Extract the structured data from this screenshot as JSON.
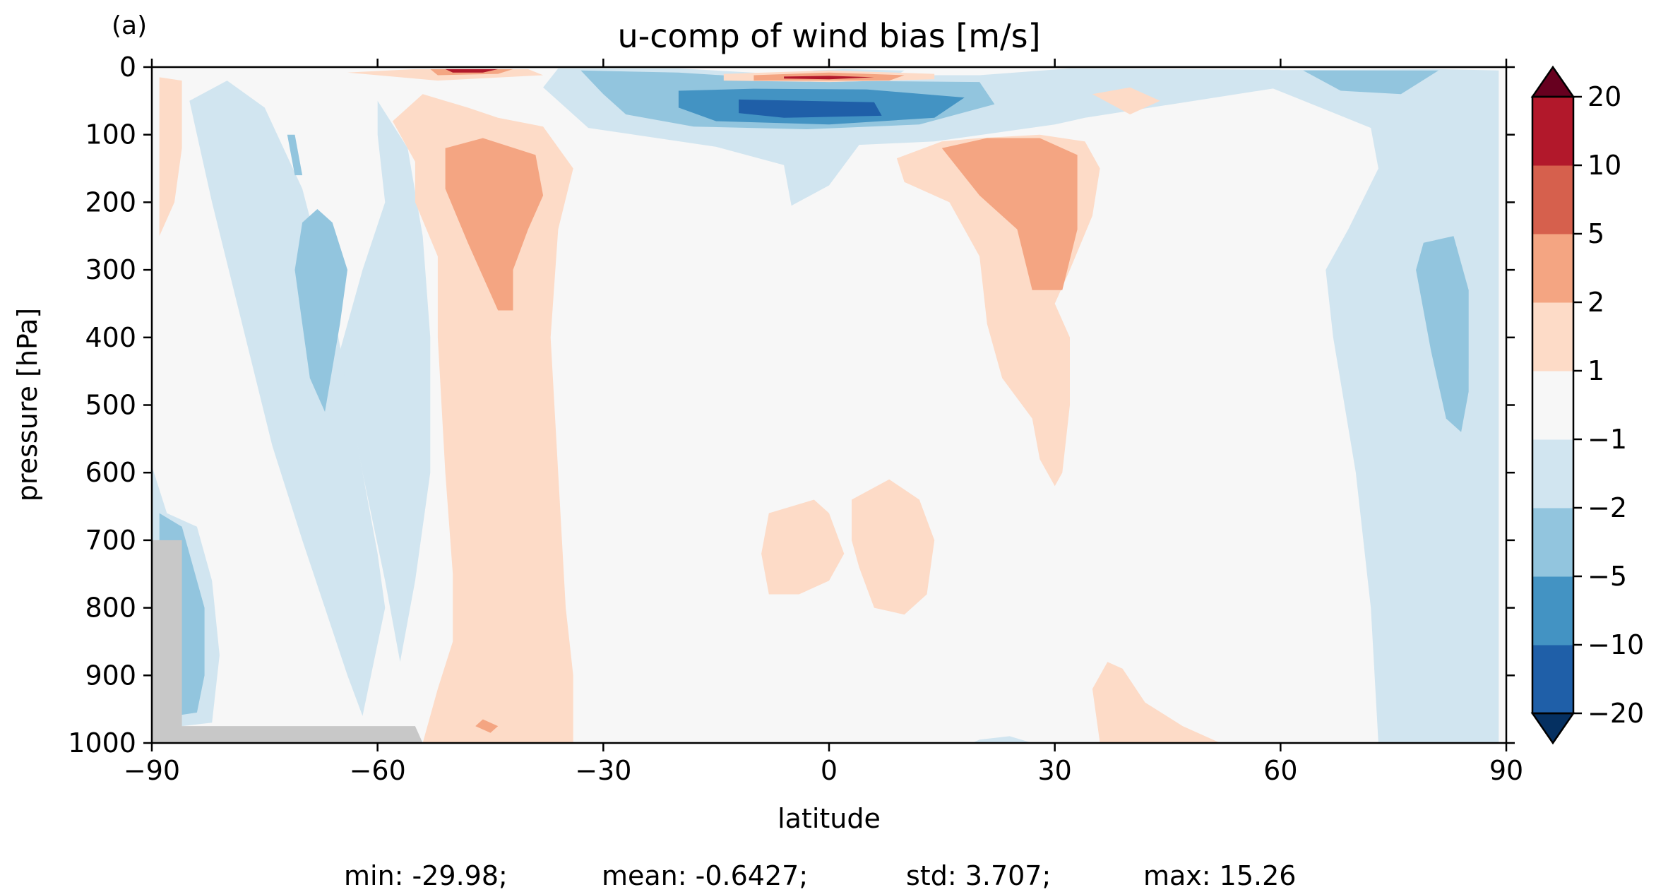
{
  "chart_data": {
    "type": "contourf",
    "panel_label": "(a)",
    "title": "u-comp of wind bias [m/s]",
    "xlabel": "latitude",
    "ylabel": "pressure [hPa]",
    "xlim": [
      -90,
      90
    ],
    "ylim": [
      1000,
      0
    ],
    "xticks": [
      -90,
      -60,
      -30,
      0,
      30,
      60,
      90
    ],
    "xtick_labels": [
      "−90",
      "−60",
      "−30",
      "0",
      "30",
      "60",
      "90"
    ],
    "yticks": [
      0,
      100,
      200,
      300,
      400,
      500,
      600,
      700,
      800,
      900,
      1000
    ],
    "ytick_labels": [
      "0",
      "100",
      "200",
      "300",
      "400",
      "500",
      "600",
      "700",
      "800",
      "900",
      "1000"
    ],
    "colorbar": {
      "levels": [
        -20,
        -10,
        -5,
        -2,
        -1,
        1,
        2,
        5,
        10,
        20
      ],
      "tick_labels": [
        "−20",
        "−10",
        "−5",
        "−2",
        "−1",
        "1",
        "2",
        "5",
        "10",
        "20"
      ],
      "colors": [
        "#1f5fa8",
        "#4393c3",
        "#92c5de",
        "#d1e5f0",
        "#f7f7f7",
        "#fddbc7",
        "#f4a582",
        "#d6604d",
        "#b2182b"
      ],
      "under_color": "#053061",
      "over_color": "#67001f",
      "extend": "both"
    },
    "background_color": "#f7f7f7",
    "missing_color": "#c8c8c8",
    "regions": [
      {
        "level": -2,
        "points": [
          [
            -85,
            50
          ],
          [
            -80,
            20
          ],
          [
            -75,
            60
          ],
          [
            -70,
            180
          ],
          [
            -66,
            350
          ],
          [
            -62,
            600
          ],
          [
            -60,
            720
          ],
          [
            -59,
            800
          ],
          [
            -62,
            960
          ],
          [
            -64,
            900
          ],
          [
            -67,
            800
          ],
          [
            -70,
            700
          ],
          [
            -74,
            560
          ],
          [
            -78,
            380
          ],
          [
            -82,
            200
          ],
          [
            -84,
            100
          ]
        ]
      },
      {
        "level": -2,
        "points": [
          [
            -60,
            50
          ],
          [
            -56,
            120
          ],
          [
            -54,
            250
          ],
          [
            -53,
            400
          ],
          [
            -53,
            600
          ],
          [
            -55,
            760
          ],
          [
            -57,
            880
          ],
          [
            -59,
            760
          ],
          [
            -62,
            600
          ],
          [
            -65,
            420
          ],
          [
            -62,
            300
          ],
          [
            -59,
            200
          ],
          [
            -60,
            100
          ]
        ]
      },
      {
        "level": -5,
        "points": [
          [
            -70,
            230
          ],
          [
            -68,
            210
          ],
          [
            -66,
            230
          ],
          [
            -64,
            300
          ],
          [
            -65,
            380
          ],
          [
            -67,
            510
          ],
          [
            -69,
            460
          ],
          [
            -70,
            380
          ],
          [
            -71,
            300
          ]
        ]
      },
      {
        "level": -5,
        "points": [
          [
            -72,
            100
          ],
          [
            -71,
            100
          ],
          [
            -70,
            160
          ],
          [
            -71,
            160
          ]
        ]
      },
      {
        "level": -2,
        "points": [
          [
            -90,
            590
          ],
          [
            -88,
            660
          ],
          [
            -84,
            680
          ],
          [
            -82,
            760
          ],
          [
            -81,
            870
          ],
          [
            -82,
            970
          ],
          [
            -86,
            975
          ],
          [
            -88,
            700
          ],
          [
            -90,
            700
          ]
        ]
      },
      {
        "level": -5,
        "points": [
          [
            -89,
            660
          ],
          [
            -86,
            680
          ],
          [
            -85,
            720
          ],
          [
            -83,
            800
          ],
          [
            -83,
            900
          ],
          [
            -84,
            955
          ],
          [
            -87,
            960
          ],
          [
            -88,
            800
          ],
          [
            -89,
            720
          ]
        ]
      },
      {
        "level": -2,
        "points": [
          [
            -36,
            2
          ],
          [
            -20,
            2
          ],
          [
            -4,
            12
          ],
          [
            20,
            12
          ],
          [
            32,
            2
          ],
          [
            60,
            4
          ],
          [
            60,
            30
          ],
          [
            34,
            75
          ],
          [
            30,
            85
          ],
          [
            14,
            110
          ],
          [
            4,
            115
          ],
          [
            0,
            175
          ],
          [
            -5,
            205
          ],
          [
            -6,
            145
          ],
          [
            -15,
            118
          ],
          [
            -32,
            90
          ],
          [
            -38,
            30
          ]
        ]
      },
      {
        "level": -5,
        "points": [
          [
            -33,
            5
          ],
          [
            -20,
            8
          ],
          [
            -3,
            20
          ],
          [
            20,
            22
          ],
          [
            22,
            55
          ],
          [
            12,
            85
          ],
          [
            -3,
            92
          ],
          [
            -18,
            88
          ],
          [
            -27,
            70
          ],
          [
            -30,
            40
          ]
        ]
      },
      {
        "level": -10,
        "points": [
          [
            -20,
            35
          ],
          [
            -10,
            32
          ],
          [
            5,
            33
          ],
          [
            18,
            45
          ],
          [
            14,
            75
          ],
          [
            0,
            85
          ],
          [
            -15,
            80
          ],
          [
            -20,
            60
          ]
        ]
      },
      {
        "level": -20,
        "points": [
          [
            -12,
            48
          ],
          [
            6,
            52
          ],
          [
            7,
            72
          ],
          [
            -6,
            75
          ],
          [
            -12,
            68
          ]
        ]
      },
      {
        "level": -2,
        "points": [
          [
            53,
            5
          ],
          [
            81,
            3
          ],
          [
            89,
            5
          ],
          [
            89,
            700
          ],
          [
            89,
            1000
          ],
          [
            73,
            1000
          ],
          [
            72,
            800
          ],
          [
            70,
            600
          ],
          [
            67,
            400
          ],
          [
            66,
            300
          ],
          [
            69,
            240
          ],
          [
            73,
            150
          ],
          [
            72,
            90
          ],
          [
            62,
            45
          ]
        ]
      },
      {
        "level": -5,
        "points": [
          [
            63,
            5
          ],
          [
            81,
            5
          ],
          [
            76,
            40
          ],
          [
            68,
            35
          ]
        ]
      },
      {
        "level": -5,
        "points": [
          [
            79,
            260
          ],
          [
            83,
            250
          ],
          [
            85,
            330
          ],
          [
            85,
            480
          ],
          [
            84,
            540
          ],
          [
            82,
            520
          ],
          [
            80,
            420
          ],
          [
            78,
            300
          ]
        ]
      },
      {
        "level": -2,
        "points": [
          [
            20,
            995
          ],
          [
            24,
            990
          ],
          [
            27,
            1000
          ],
          [
            19,
            1000
          ]
        ]
      },
      {
        "level": 1,
        "points": [
          [
            -54,
            40
          ],
          [
            -48,
            60
          ],
          [
            -44,
            75
          ],
          [
            -38,
            88
          ],
          [
            -34,
            150
          ],
          [
            -36,
            240
          ],
          [
            -37,
            400
          ],
          [
            -36,
            600
          ],
          [
            -35,
            800
          ],
          [
            -34,
            900
          ],
          [
            -34,
            1000
          ],
          [
            -54,
            1000
          ],
          [
            -52,
            920
          ],
          [
            -50,
            850
          ],
          [
            -50,
            750
          ],
          [
            -51,
            600
          ],
          [
            -52,
            400
          ],
          [
            -52,
            280
          ],
          [
            -55,
            200
          ],
          [
            -55,
            140
          ],
          [
            -58,
            80
          ]
        ]
      },
      {
        "level": 2,
        "points": [
          [
            -51,
            120
          ],
          [
            -46,
            105
          ],
          [
            -39,
            130
          ],
          [
            -38,
            190
          ],
          [
            -40,
            240
          ],
          [
            -42,
            300
          ],
          [
            -42,
            360
          ],
          [
            -44,
            360
          ],
          [
            -48,
            260
          ],
          [
            -51,
            180
          ]
        ]
      },
      {
        "level": 2,
        "points": [
          [
            -46,
            965
          ],
          [
            -44,
            975
          ],
          [
            -45,
            985
          ],
          [
            -47,
            975
          ]
        ]
      },
      {
        "level": 1,
        "points": [
          [
            9,
            135
          ],
          [
            15,
            110
          ],
          [
            20,
            105
          ],
          [
            28,
            100
          ],
          [
            34,
            110
          ],
          [
            36,
            150
          ],
          [
            35,
            220
          ],
          [
            32,
            300
          ],
          [
            30,
            350
          ],
          [
            32,
            400
          ],
          [
            32,
            500
          ],
          [
            31,
            600
          ],
          [
            30,
            620
          ],
          [
            28,
            580
          ],
          [
            27,
            520
          ],
          [
            23,
            460
          ],
          [
            21,
            380
          ],
          [
            20,
            280
          ],
          [
            16,
            200
          ],
          [
            10,
            170
          ]
        ]
      },
      {
        "level": 2,
        "points": [
          [
            15,
            120
          ],
          [
            21,
            105
          ],
          [
            28,
            105
          ],
          [
            33,
            130
          ],
          [
            33,
            240
          ],
          [
            31,
            330
          ],
          [
            27,
            330
          ],
          [
            25,
            240
          ],
          [
            20,
            190
          ]
        ]
      },
      {
        "level": -2,
        "points": [
          [
            -2,
            5
          ],
          [
            2,
            3
          ],
          [
            10,
            5
          ],
          [
            8,
            20
          ],
          [
            0,
            22
          ],
          [
            -8,
            20
          ]
        ]
      },
      {
        "level": 1,
        "points": [
          [
            -14,
            10
          ],
          [
            0,
            5
          ],
          [
            14,
            10
          ],
          [
            14,
            18
          ],
          [
            0,
            22
          ],
          [
            -14,
            20
          ]
        ]
      },
      {
        "level": 2,
        "points": [
          [
            -10,
            12
          ],
          [
            0,
            8
          ],
          [
            10,
            12
          ],
          [
            8,
            20
          ],
          [
            -10,
            20
          ]
        ]
      },
      {
        "level": 10,
        "points": [
          [
            -6,
            14
          ],
          [
            0,
            13
          ],
          [
            6,
            15
          ],
          [
            0,
            18
          ],
          [
            -6,
            17
          ]
        ]
      },
      {
        "level": 1,
        "points": [
          [
            -55,
            3
          ],
          [
            -40,
            3
          ],
          [
            -38,
            12
          ],
          [
            -52,
            20
          ],
          [
            -64,
            8
          ]
        ]
      },
      {
        "level": 2,
        "points": [
          [
            -53,
            3
          ],
          [
            -42,
            3
          ],
          [
            -44,
            10
          ],
          [
            -52,
            12
          ]
        ]
      },
      {
        "level": 10,
        "points": [
          [
            -51,
            3
          ],
          [
            -44,
            3
          ],
          [
            -46,
            8
          ],
          [
            -50,
            8
          ]
        ]
      },
      {
        "level": 1,
        "points": [
          [
            -86,
            20
          ],
          [
            -89,
            15
          ],
          [
            -89,
            250
          ],
          [
            -87,
            200
          ],
          [
            -86,
            120
          ]
        ]
      },
      {
        "level": 1,
        "points": [
          [
            -8,
            660
          ],
          [
            -2,
            640
          ],
          [
            0,
            660
          ],
          [
            2,
            720
          ],
          [
            0,
            760
          ],
          [
            -4,
            780
          ],
          [
            -8,
            780
          ],
          [
            -9,
            720
          ]
        ]
      },
      {
        "level": 1,
        "points": [
          [
            3,
            640
          ],
          [
            8,
            610
          ],
          [
            12,
            640
          ],
          [
            14,
            700
          ],
          [
            13,
            780
          ],
          [
            10,
            810
          ],
          [
            6,
            800
          ],
          [
            4,
            740
          ],
          [
            3,
            700
          ]
        ]
      },
      {
        "level": 1,
        "points": [
          [
            35,
            920
          ],
          [
            37,
            880
          ],
          [
            39,
            890
          ],
          [
            42,
            940
          ],
          [
            47,
            975
          ],
          [
            52,
            1000
          ],
          [
            36,
            1000
          ]
        ]
      },
      {
        "level": 1,
        "points": [
          [
            35,
            40
          ],
          [
            40,
            30
          ],
          [
            44,
            50
          ],
          [
            40,
            70
          ]
        ]
      },
      {
        "level": 1,
        "points": [
          [
            -74,
            1000
          ],
          [
            -72,
            980
          ],
          [
            -71,
            1000
          ]
        ]
      }
    ],
    "missing_regions": [
      {
        "points": [
          [
            -90,
            700
          ],
          [
            -86,
            700
          ],
          [
            -86,
            975
          ],
          [
            -55,
            975
          ],
          [
            -54,
            1000
          ],
          [
            -90,
            1000
          ]
        ]
      }
    ]
  },
  "stats": {
    "min": "min: -29.98;",
    "mean": "mean: -0.6427;",
    "std": "std: 3.707;",
    "max": "max: 15.26"
  }
}
